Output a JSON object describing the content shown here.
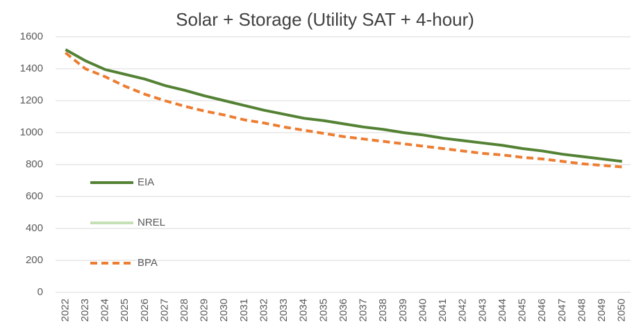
{
  "chart_data": {
    "type": "line",
    "title": "Solar + Storage (Utility SAT + 4-hour)",
    "categories": [
      "2022",
      "2023",
      "2024",
      "2025",
      "2026",
      "2027",
      "2028",
      "2029",
      "2030",
      "2031",
      "2032",
      "2033",
      "2034",
      "2035",
      "2036",
      "2037",
      "2038",
      "2039",
      "2040",
      "2041",
      "2042",
      "2043",
      "2044",
      "2045",
      "2046",
      "2047",
      "2048",
      "2049",
      "2050"
    ],
    "series": [
      {
        "name": "EIA",
        "color": "#548235",
        "line_style": "solid",
        "values": [
          1520,
          1450,
          1395,
          1365,
          1335,
          1295,
          1265,
          1230,
          1200,
          1170,
          1140,
          1115,
          1090,
          1075,
          1055,
          1035,
          1020,
          1000,
          985,
          965,
          950,
          935,
          920,
          900,
          885,
          865,
          850,
          835,
          820
        ]
      },
      {
        "name": "NREL",
        "color": "#c5e0b4",
        "line_style": "solid",
        "values": [
          null,
          null,
          null,
          null,
          null,
          null,
          null,
          null,
          null,
          null,
          null,
          null,
          null,
          null,
          null,
          null,
          null,
          null,
          null,
          null,
          null,
          null,
          null,
          null,
          null,
          null,
          null,
          null,
          null
        ]
      },
      {
        "name": "BPA",
        "color": "#ed7d31",
        "line_style": "dashed",
        "values": [
          1500,
          1400,
          1350,
          1290,
          1240,
          1200,
          1165,
          1135,
          1110,
          1080,
          1060,
          1035,
          1015,
          995,
          975,
          960,
          945,
          930,
          915,
          900,
          885,
          870,
          860,
          845,
          835,
          820,
          805,
          795,
          785
        ]
      }
    ],
    "ylim": [
      0,
      1600
    ],
    "yticks": [
      0,
      200,
      400,
      600,
      800,
      1000,
      1200,
      1400,
      1600
    ],
    "grid": true,
    "legend": "left"
  }
}
